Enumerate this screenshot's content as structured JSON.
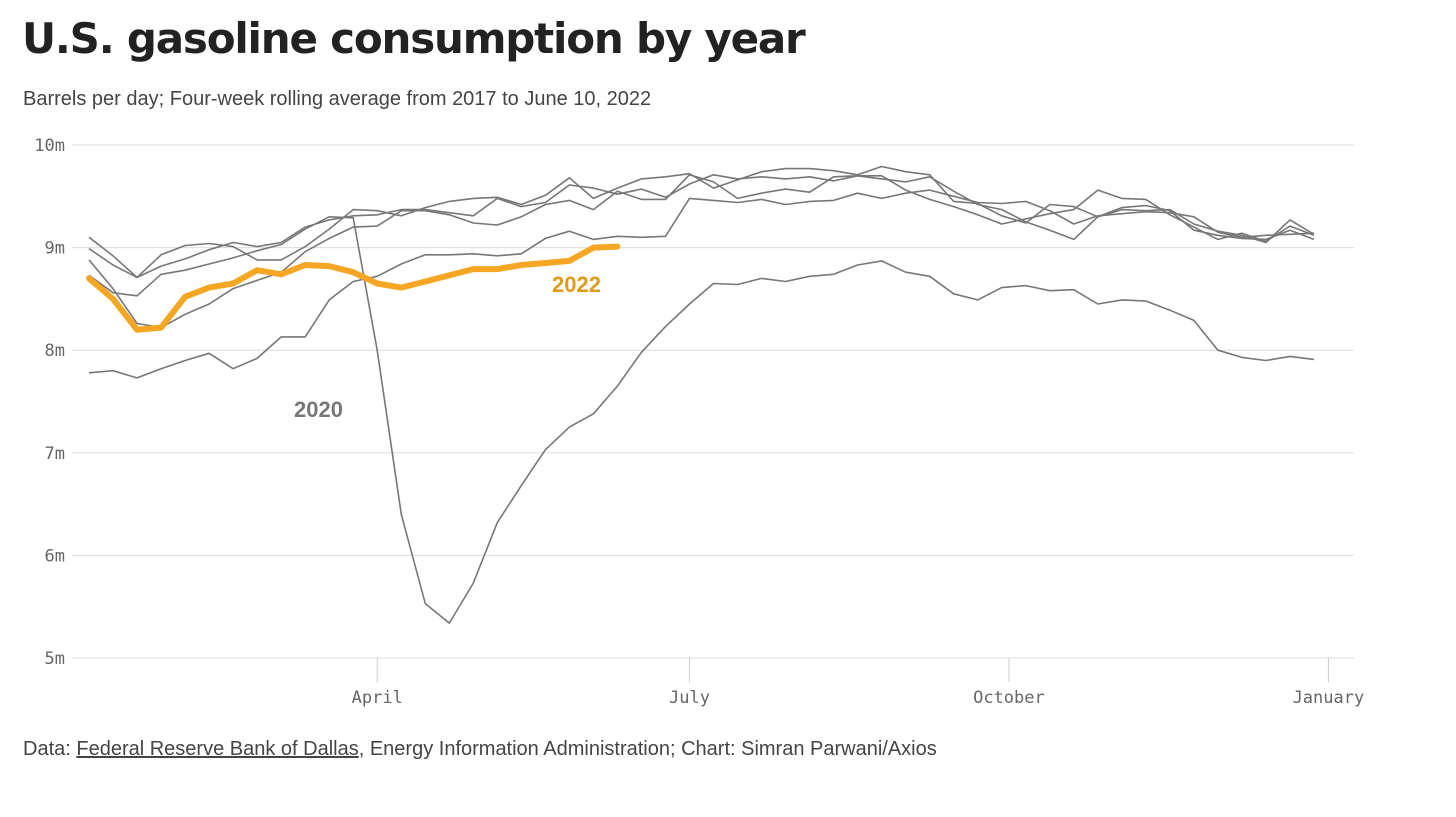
{
  "chart_data": {
    "type": "line",
    "title": "U.S. gasoline consumption by year",
    "subtitle": "Barrels per day; Four-week rolling average from 2017 to June 10, 2022",
    "ylim": [
      5,
      10
    ],
    "yticks": [
      5,
      6,
      7,
      8,
      9,
      10
    ],
    "ytick_labels": [
      "5m",
      "6m",
      "7m",
      "8m",
      "9m",
      "10m"
    ],
    "x_unit": "week of year",
    "xlim": [
      1,
      53
    ],
    "xticks": [
      {
        "week": 13,
        "label": "April"
      },
      {
        "week": 26,
        "label": "July"
      },
      {
        "week": 39.3,
        "label": "October"
      },
      {
        "week": 52.6,
        "label": "January"
      }
    ],
    "grid": true,
    "series": [
      {
        "name": "2020",
        "highlight": false,
        "values": [
          8.73,
          8.56,
          8.53,
          8.74,
          8.78,
          8.84,
          8.9,
          8.97,
          9.03,
          9.18,
          9.3,
          9.29,
          8.0,
          6.4,
          5.53,
          5.34,
          5.73,
          6.32,
          6.68,
          7.03,
          7.25,
          7.38,
          7.65,
          7.98,
          8.23,
          8.45,
          8.65,
          8.64,
          8.7,
          8.67,
          8.72,
          8.74,
          8.83,
          8.87,
          8.76,
          8.72,
          8.55,
          8.49,
          8.61,
          8.63,
          8.58,
          8.59,
          8.45,
          8.49,
          8.48,
          8.39,
          8.29,
          8.0,
          7.93,
          7.9,
          7.94,
          7.91
        ]
      },
      {
        "series_key": "year-a",
        "highlight": false,
        "values": [
          9.1,
          8.92,
          8.71,
          8.93,
          9.02,
          9.04,
          9.01,
          8.88,
          8.88,
          9.01,
          9.18,
          9.37,
          9.36,
          9.31,
          9.39,
          9.45,
          9.48,
          9.49,
          9.42,
          9.51,
          9.68,
          9.48,
          9.58,
          9.67,
          9.69,
          9.72,
          9.58,
          9.66,
          9.74,
          9.77,
          9.77,
          9.75,
          9.71,
          9.79,
          9.74,
          9.71,
          9.45,
          9.43,
          9.31,
          9.24,
          9.42,
          9.4,
          9.3,
          9.37,
          9.36,
          9.37,
          9.23,
          9.16,
          9.12,
          9.05,
          9.27,
          9.13
        ]
      },
      {
        "series_key": "year-b",
        "highlight": false,
        "values": [
          8.99,
          8.83,
          8.71,
          8.82,
          8.89,
          8.98,
          9.05,
          9.01,
          9.05,
          9.2,
          9.27,
          9.31,
          9.32,
          9.37,
          9.37,
          9.34,
          9.31,
          9.48,
          9.4,
          9.44,
          9.61,
          9.58,
          9.52,
          9.57,
          9.49,
          9.62,
          9.71,
          9.67,
          9.69,
          9.67,
          9.69,
          9.65,
          9.7,
          9.7,
          9.56,
          9.47,
          9.4,
          9.32,
          9.23,
          9.28,
          9.33,
          9.37,
          9.56,
          9.48,
          9.47,
          9.32,
          9.2,
          9.08,
          9.14,
          9.06,
          9.21,
          9.12
        ]
      },
      {
        "series_key": "year-c",
        "highlight": false,
        "values": [
          8.88,
          8.6,
          8.26,
          8.22,
          8.35,
          8.45,
          8.6,
          8.68,
          8.76,
          8.96,
          9.09,
          9.2,
          9.21,
          9.36,
          9.36,
          9.32,
          9.24,
          9.22,
          9.3,
          9.42,
          9.46,
          9.37,
          9.55,
          9.47,
          9.47,
          9.71,
          9.64,
          9.48,
          9.53,
          9.57,
          9.54,
          9.69,
          9.7,
          9.67,
          9.64,
          9.69,
          9.55,
          9.42,
          9.37,
          9.25,
          9.17,
          9.08,
          9.3,
          9.39,
          9.41,
          9.36,
          9.17,
          9.12,
          9.09,
          9.08,
          9.17,
          9.08
        ]
      },
      {
        "series_key": "year-d",
        "highlight": false,
        "values": [
          7.78,
          7.8,
          7.73,
          7.82,
          7.9,
          7.97,
          7.82,
          7.92,
          8.13,
          8.13,
          8.49,
          8.67,
          8.72,
          8.84,
          8.93,
          8.93,
          8.94,
          8.92,
          8.94,
          9.09,
          9.16,
          9.08,
          9.11,
          9.1,
          9.11,
          9.48,
          9.46,
          9.44,
          9.47,
          9.42,
          9.45,
          9.46,
          9.53,
          9.48,
          9.53,
          9.56,
          9.5,
          9.44,
          9.43,
          9.45,
          9.36,
          9.23,
          9.31,
          9.33,
          9.35,
          9.34,
          9.3,
          9.15,
          9.1,
          9.12,
          9.13,
          9.14
        ]
      },
      {
        "name": "2022",
        "highlight": true,
        "values": [
          8.7,
          8.5,
          8.2,
          8.22,
          8.52,
          8.61,
          8.65,
          8.78,
          8.74,
          8.83,
          8.82,
          8.76,
          8.65,
          8.61,
          8.67,
          8.73,
          8.79,
          8.79,
          8.83,
          8.85,
          8.87,
          9.0,
          9.01
        ]
      }
    ]
  },
  "footer": {
    "prefix": "Data: ",
    "link": "Federal Reserve Bank of Dallas",
    "rest": ", Energy Information Administration; Chart: Simran Parwani/Axios"
  }
}
